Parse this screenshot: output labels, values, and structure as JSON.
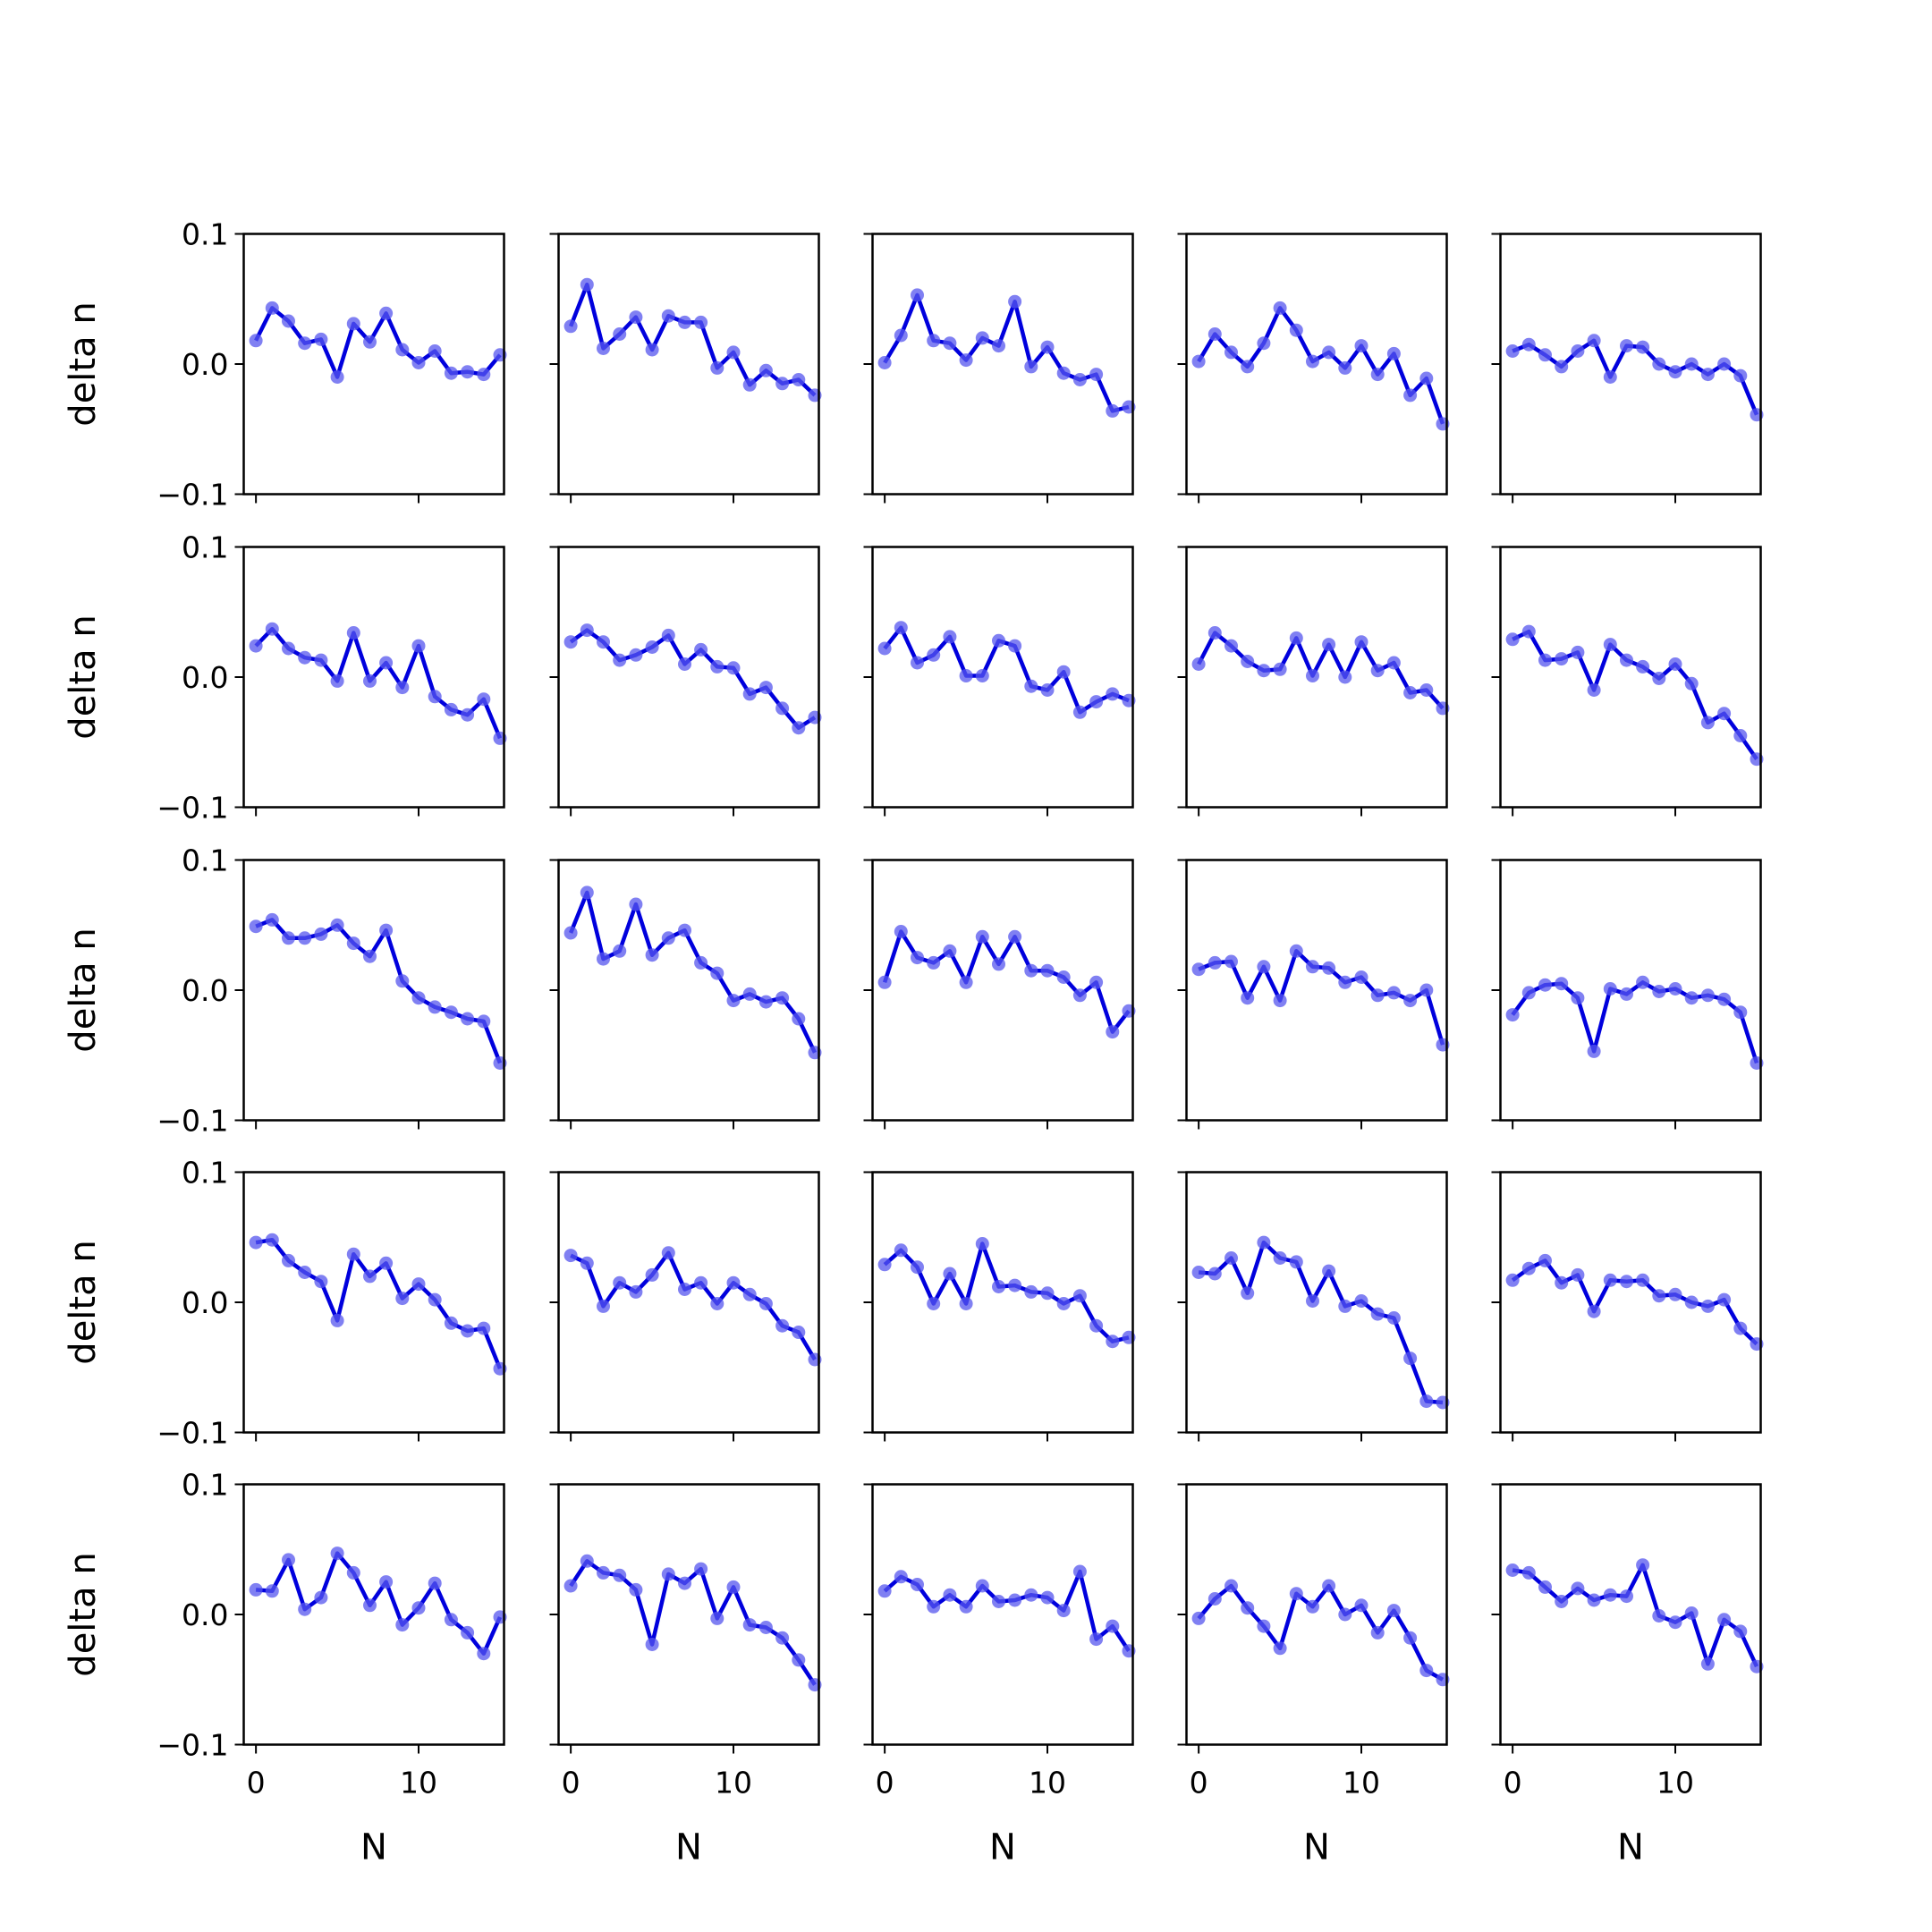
{
  "chart_data": {
    "type": "line",
    "layout": "grid",
    "rows": 5,
    "cols": 5,
    "xlabel": "N",
    "ylabel": "delta n",
    "xlim": [
      -0.75,
      15.25
    ],
    "ylim": [
      -0.1,
      0.1
    ],
    "x_ticks": [
      0,
      10
    ],
    "x_tick_labels": [
      "0",
      "10"
    ],
    "y_ticks": [
      0.1,
      0.0,
      -0.1
    ],
    "y_tick_labels": [
      "0.1",
      "0.0",
      "−0.1"
    ],
    "x": [
      0,
      1,
      2,
      3,
      4,
      5,
      6,
      7,
      8,
      9,
      10,
      11,
      12,
      13,
      14,
      15
    ],
    "line_color": "#0000dd",
    "marker_color": "#5555ee",
    "grid": false,
    "panels": [
      {
        "values": [
          0.018,
          0.043,
          0.033,
          0.016,
          0.019,
          -0.01,
          0.031,
          0.017,
          0.039,
          0.011,
          0.001,
          0.01,
          -0.007,
          -0.006,
          -0.008,
          0.007
        ]
      },
      {
        "values": [
          0.029,
          0.061,
          0.012,
          0.023,
          0.036,
          0.011,
          0.037,
          0.032,
          0.032,
          -0.003,
          0.009,
          -0.016,
          -0.005,
          -0.015,
          -0.012,
          -0.024
        ]
      },
      {
        "values": [
          0.001,
          0.022,
          0.053,
          0.018,
          0.016,
          0.003,
          0.02,
          0.014,
          0.048,
          -0.002,
          0.013,
          -0.007,
          -0.012,
          -0.008,
          -0.036,
          -0.033
        ]
      },
      {
        "values": [
          0.002,
          0.023,
          0.009,
          -0.002,
          0.016,
          0.043,
          0.026,
          0.002,
          0.009,
          -0.003,
          0.014,
          -0.008,
          0.008,
          -0.024,
          -0.011,
          -0.046
        ]
      },
      {
        "values": [
          0.01,
          0.015,
          0.007,
          -0.002,
          0.01,
          0.018,
          -0.01,
          0.014,
          0.013,
          0.0,
          -0.006,
          0.0,
          -0.008,
          0.0,
          -0.009,
          -0.039
        ]
      },
      {
        "values": [
          0.024,
          0.037,
          0.022,
          0.015,
          0.013,
          -0.003,
          0.034,
          -0.003,
          0.011,
          -0.008,
          0.024,
          -0.015,
          -0.025,
          -0.029,
          -0.017,
          -0.047
        ]
      },
      {
        "values": [
          0.027,
          0.036,
          0.027,
          0.013,
          0.017,
          0.023,
          0.032,
          0.01,
          0.021,
          0.008,
          0.007,
          -0.013,
          -0.008,
          -0.024,
          -0.039,
          -0.031
        ]
      },
      {
        "values": [
          0.022,
          0.038,
          0.011,
          0.017,
          0.031,
          0.001,
          0.001,
          0.028,
          0.024,
          -0.007,
          -0.01,
          0.004,
          -0.027,
          -0.019,
          -0.013,
          -0.018
        ]
      },
      {
        "values": [
          0.01,
          0.034,
          0.024,
          0.012,
          0.005,
          0.006,
          0.03,
          0.001,
          0.025,
          0.0,
          0.027,
          0.005,
          0.011,
          -0.012,
          -0.01,
          -0.024
        ]
      },
      {
        "values": [
          0.029,
          0.035,
          0.013,
          0.014,
          0.019,
          -0.01,
          0.025,
          0.013,
          0.008,
          -0.001,
          0.01,
          -0.005,
          -0.035,
          -0.028,
          -0.045,
          -0.063
        ]
      },
      {
        "values": [
          0.049,
          0.054,
          0.04,
          0.04,
          0.043,
          0.05,
          0.036,
          0.026,
          0.046,
          0.007,
          -0.006,
          -0.013,
          -0.017,
          -0.022,
          -0.024,
          -0.056
        ]
      },
      {
        "values": [
          0.044,
          0.075,
          0.024,
          0.03,
          0.066,
          0.027,
          0.04,
          0.046,
          0.021,
          0.013,
          -0.008,
          -0.003,
          -0.009,
          -0.006,
          -0.022,
          -0.048
        ]
      },
      {
        "values": [
          0.006,
          0.045,
          0.025,
          0.021,
          0.03,
          0.006,
          0.041,
          0.02,
          0.041,
          0.015,
          0.015,
          0.01,
          -0.004,
          0.006,
          -0.032,
          -0.016
        ]
      },
      {
        "values": [
          0.016,
          0.021,
          0.022,
          -0.006,
          0.018,
          -0.008,
          0.03,
          0.018,
          0.017,
          0.006,
          0.01,
          -0.004,
          -0.002,
          -0.008,
          0.0,
          -0.042
        ]
      },
      {
        "values": [
          -0.019,
          -0.002,
          0.004,
          0.005,
          -0.006,
          -0.047,
          0.001,
          -0.003,
          0.006,
          -0.001,
          0.001,
          -0.006,
          -0.004,
          -0.007,
          -0.017,
          -0.056
        ]
      },
      {
        "values": [
          0.046,
          0.048,
          0.032,
          0.023,
          0.016,
          -0.014,
          0.037,
          0.02,
          0.03,
          0.003,
          0.014,
          0.002,
          -0.016,
          -0.022,
          -0.02,
          -0.051
        ]
      },
      {
        "values": [
          0.036,
          0.03,
          -0.003,
          0.015,
          0.008,
          0.021,
          0.038,
          0.01,
          0.015,
          -0.001,
          0.015,
          0.006,
          -0.001,
          -0.018,
          -0.023,
          -0.044
        ]
      },
      {
        "values": [
          0.029,
          0.04,
          0.027,
          -0.001,
          0.022,
          -0.001,
          0.045,
          0.012,
          0.013,
          0.008,
          0.007,
          -0.001,
          0.005,
          -0.018,
          -0.03,
          -0.027
        ]
      },
      {
        "values": [
          0.023,
          0.022,
          0.034,
          0.007,
          0.046,
          0.034,
          0.031,
          0.001,
          0.024,
          -0.003,
          0.001,
          -0.009,
          -0.012,
          -0.043,
          -0.076,
          -0.077
        ]
      },
      {
        "values": [
          0.017,
          0.026,
          0.032,
          0.015,
          0.021,
          -0.007,
          0.017,
          0.016,
          0.017,
          0.005,
          0.006,
          0.0,
          -0.003,
          0.002,
          -0.02,
          -0.032
        ]
      },
      {
        "values": [
          0.019,
          0.018,
          0.042,
          0.004,
          0.013,
          0.047,
          0.032,
          0.007,
          0.025,
          -0.008,
          0.005,
          0.024,
          -0.004,
          -0.014,
          -0.03,
          -0.002
        ]
      },
      {
        "values": [
          0.022,
          0.041,
          0.032,
          0.03,
          0.019,
          -0.023,
          0.031,
          0.024,
          0.035,
          -0.003,
          0.021,
          -0.008,
          -0.01,
          -0.018,
          -0.035,
          -0.054
        ]
      },
      {
        "values": [
          0.018,
          0.029,
          0.023,
          0.006,
          0.015,
          0.006,
          0.022,
          0.01,
          0.011,
          0.015,
          0.013,
          0.003,
          0.033,
          -0.019,
          -0.009,
          -0.028
        ]
      },
      {
        "values": [
          -0.003,
          0.012,
          0.022,
          0.005,
          -0.009,
          -0.026,
          0.016,
          0.006,
          0.022,
          0.0,
          0.007,
          -0.014,
          0.003,
          -0.018,
          -0.043,
          -0.05
        ]
      },
      {
        "values": [
          0.034,
          0.032,
          0.021,
          0.01,
          0.02,
          0.011,
          0.015,
          0.014,
          0.038,
          -0.001,
          -0.006,
          0.001,
          -0.038,
          -0.004,
          -0.013,
          -0.04
        ]
      }
    ]
  }
}
